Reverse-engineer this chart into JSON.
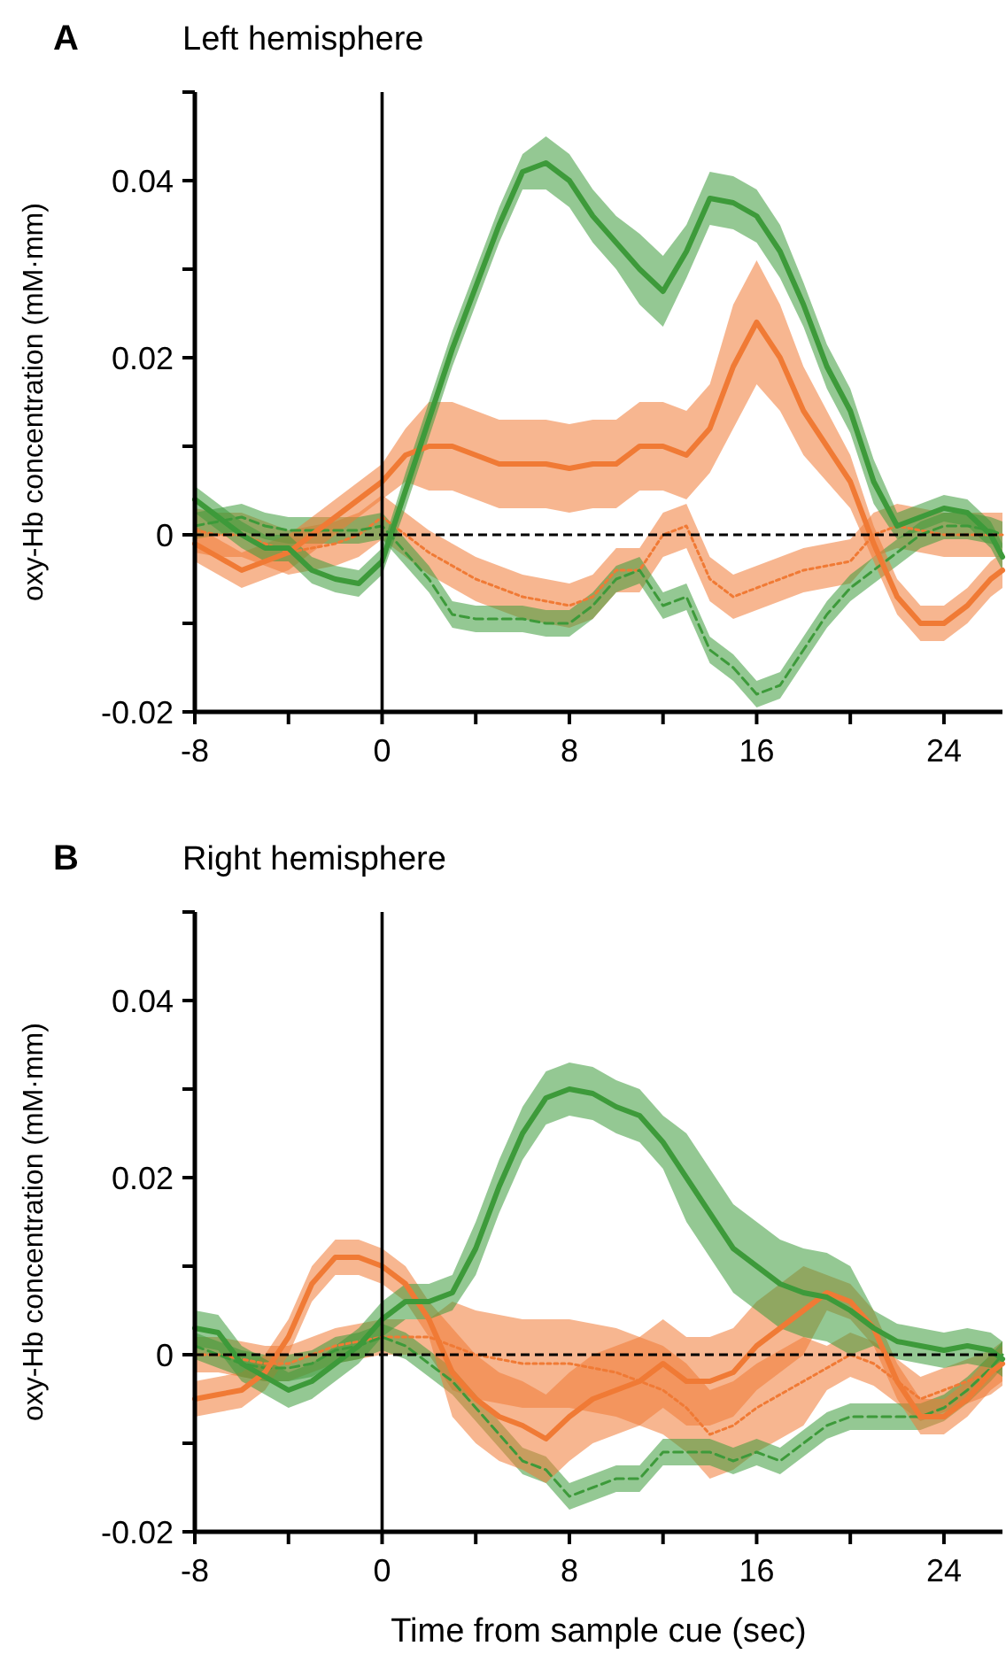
{
  "chart_data": [
    {
      "type": "line",
      "title": "Left hemisphere",
      "ylabel": "oxy-Hb concentration (mM·mm)",
      "annotations": [
        "A"
      ],
      "x": [
        -8,
        -7,
        -6,
        -5,
        -4,
        -3,
        -2,
        -1,
        0,
        1,
        2,
        3,
        4,
        5,
        6,
        7,
        8,
        9,
        10,
        11,
        12,
        13,
        14,
        15,
        16,
        17,
        18,
        19,
        20,
        21,
        22,
        23,
        24,
        25,
        26,
        26.5
      ],
      "xlim": [
        -8,
        26.5
      ],
      "xticks": [
        -8,
        {
          "value": -4,
          "label": null
        },
        0,
        {
          "value": 4,
          "label": null
        },
        8,
        {
          "value": 12,
          "label": null
        },
        16,
        {
          "value": 20,
          "label": null
        },
        24
      ],
      "ylim": [
        -0.02,
        0.05
      ],
      "yticks": [
        -0.02,
        {
          "value": -0.01,
          "label": null
        },
        0,
        {
          "value": 0.01,
          "label": null
        },
        0.02,
        {
          "value": 0.03,
          "label": null
        },
        0.04,
        {
          "value": 0.05,
          "label": null
        }
      ],
      "grid": false,
      "marker": "none",
      "ref_lines": [
        {
          "axis": "x",
          "value": 0,
          "color": "#000000",
          "line_style": "solid"
        },
        {
          "axis": "y",
          "value": 0,
          "color": "#000000",
          "line_style": "dashed"
        }
      ],
      "series": [
        {
          "color": "#f07a35",
          "line_style": "dotted",
          "values": [
            0.0005,
            0,
            0,
            -0.001,
            -0.002,
            -0.0015,
            -0.001,
            0,
            0.002,
            0,
            -0.002,
            -0.0035,
            -0.005,
            -0.006,
            -0.007,
            -0.0075,
            -0.008,
            -0.007,
            -0.004,
            -0.004,
            0,
            0.001,
            -0.005,
            -0.007,
            -0.006,
            -0.005,
            -0.004,
            -0.0035,
            -0.003,
            0,
            0.001,
            0.0005,
            0,
            0,
            0,
            0
          ],
          "lower": [
            -0.002,
            -0.0025,
            -0.0025,
            -0.0035,
            -0.0045,
            -0.004,
            -0.0035,
            -0.0025,
            -0.0005,
            -0.0025,
            -0.0045,
            -0.006,
            -0.0075,
            -0.0085,
            -0.0095,
            -0.01,
            -0.0105,
            -0.0095,
            -0.0065,
            -0.0065,
            -0.0025,
            -0.0015,
            -0.0075,
            -0.0095,
            -0.0085,
            -0.0075,
            -0.0065,
            -0.006,
            -0.0055,
            -0.0025,
            -0.0015,
            -0.002,
            -0.0025,
            -0.0025,
            -0.0025,
            -0.0025
          ],
          "upper": [
            0.003,
            0.0025,
            0.0025,
            0.0015,
            0.0005,
            0.001,
            0.0015,
            0.0025,
            0.0045,
            0.0025,
            0.0005,
            -0.001,
            -0.0025,
            -0.0035,
            -0.0045,
            -0.005,
            -0.0055,
            -0.0045,
            -0.0015,
            -0.0015,
            0.0025,
            0.0035,
            -0.0025,
            -0.0045,
            -0.0035,
            -0.0025,
            -0.0015,
            -0.001,
            -0.0005,
            0.0025,
            0.0035,
            0.003,
            0.0025,
            0.0025,
            0.0025,
            0.0025
          ]
        },
        {
          "color": "#3d9a3a",
          "line_style": "dashed",
          "values": [
            0.001,
            0.0015,
            0.002,
            0.001,
            0.0005,
            0.0005,
            0.0005,
            0.0005,
            0.001,
            -0.002,
            -0.005,
            -0.009,
            -0.0095,
            -0.0095,
            -0.0095,
            -0.01,
            -0.01,
            -0.008,
            -0.005,
            -0.004,
            -0.008,
            -0.007,
            -0.013,
            -0.015,
            -0.018,
            -0.017,
            -0.013,
            -0.009,
            -0.006,
            -0.004,
            -0.002,
            0,
            0.001,
            0.001,
            0.0005,
            0
          ],
          "lower": [
            -0.0005,
            0,
            0.0005,
            -0.0005,
            -0.001,
            -0.001,
            -0.001,
            -0.001,
            -0.0005,
            -0.0035,
            -0.0065,
            -0.0105,
            -0.011,
            -0.011,
            -0.011,
            -0.0115,
            -0.0115,
            -0.0095,
            -0.0065,
            -0.0055,
            -0.0095,
            -0.0085,
            -0.0145,
            -0.0165,
            -0.0195,
            -0.0185,
            -0.0145,
            -0.0105,
            -0.0075,
            -0.0055,
            -0.0035,
            -0.0015,
            -0.0005,
            -0.0005,
            -0.001,
            -0.0015
          ],
          "upper": [
            0.0025,
            0.003,
            0.0035,
            0.0025,
            0.002,
            0.002,
            0.002,
            0.002,
            0.0025,
            -0.0005,
            -0.0035,
            -0.0075,
            -0.008,
            -0.008,
            -0.008,
            -0.0085,
            -0.0085,
            -0.0065,
            -0.0035,
            -0.0025,
            -0.0065,
            -0.0055,
            -0.0115,
            -0.0135,
            -0.0165,
            -0.0155,
            -0.0115,
            -0.0075,
            -0.0045,
            -0.0025,
            -0.0005,
            0.0015,
            0.0025,
            0.0025,
            0.002,
            0.0015
          ]
        },
        {
          "color": "#f07a35",
          "line_style": "solid",
          "values": [
            -0.001,
            -0.0025,
            -0.004,
            -0.003,
            -0.002,
            0,
            0.002,
            0.004,
            0.006,
            0.009,
            0.01,
            0.01,
            0.009,
            0.008,
            0.008,
            0.008,
            0.0075,
            0.008,
            0.008,
            0.01,
            0.01,
            0.009,
            0.012,
            0.019,
            0.024,
            0.02,
            0.014,
            0.01,
            0.006,
            -0.001,
            -0.007,
            -0.01,
            -0.01,
            -0.008,
            -0.005,
            -0.004
          ],
          "lower": [
            -0.003,
            -0.0045,
            -0.006,
            -0.005,
            -0.004,
            -0.002,
            0,
            0.002,
            0.004,
            0.006,
            0.005,
            0.005,
            0.004,
            0.003,
            0.003,
            0.003,
            0.0025,
            0.003,
            0.003,
            0.005,
            0.005,
            0.004,
            0.007,
            0.012,
            0.017,
            0.014,
            0.009,
            0.006,
            0.003,
            -0.003,
            -0.009,
            -0.012,
            -0.012,
            -0.01,
            -0.007,
            -0.006
          ],
          "upper": [
            0.001,
            -0.0005,
            -0.002,
            -0.001,
            0,
            0.002,
            0.004,
            0.006,
            0.008,
            0.012,
            0.015,
            0.015,
            0.014,
            0.013,
            0.013,
            0.013,
            0.0125,
            0.013,
            0.013,
            0.015,
            0.015,
            0.014,
            0.017,
            0.026,
            0.031,
            0.026,
            0.019,
            0.014,
            0.009,
            0.001,
            -0.005,
            -0.008,
            -0.008,
            -0.006,
            -0.003,
            -0.002
          ]
        },
        {
          "color": "#3d9a3a",
          "line_style": "solid",
          "values": [
            0.004,
            0.002,
            0,
            -0.0015,
            -0.0015,
            -0.004,
            -0.005,
            -0.0055,
            -0.003,
            0.005,
            0.013,
            0.021,
            0.028,
            0.035,
            0.041,
            0.042,
            0.04,
            0.036,
            0.033,
            0.03,
            0.0275,
            0.032,
            0.038,
            0.0375,
            0.036,
            0.032,
            0.026,
            0.019,
            0.014,
            0.006,
            0.001,
            0.002,
            0.003,
            0.0025,
            0,
            -0.0025
          ],
          "lower": [
            0.0025,
            0.0005,
            -0.0015,
            -0.003,
            -0.003,
            -0.0055,
            -0.0065,
            -0.007,
            -0.0045,
            0.003,
            0.011,
            0.019,
            0.026,
            0.033,
            0.039,
            0.039,
            0.037,
            0.033,
            0.03,
            0.026,
            0.0235,
            0.029,
            0.035,
            0.0345,
            0.033,
            0.029,
            0.0235,
            0.0165,
            0.0115,
            0.0035,
            -0.0005,
            0.0005,
            0.0015,
            0.001,
            -0.0015,
            -0.004
          ],
          "upper": [
            0.0055,
            0.0035,
            0.0015,
            0,
            0,
            -0.0025,
            -0.0035,
            -0.004,
            -0.0015,
            0.007,
            0.015,
            0.023,
            0.03,
            0.037,
            0.043,
            0.045,
            0.043,
            0.039,
            0.036,
            0.034,
            0.0315,
            0.035,
            0.041,
            0.0405,
            0.039,
            0.035,
            0.0285,
            0.0215,
            0.0165,
            0.0085,
            0.0025,
            0.0035,
            0.0045,
            0.004,
            0.0015,
            -0.001
          ]
        }
      ]
    },
    {
      "type": "line",
      "title": "Right hemisphere",
      "ylabel": "oxy-Hb concentration (mM·mm)",
      "xlabel": "Time from sample cue (sec)",
      "annotations": [
        "B"
      ],
      "x": [
        -8,
        -7,
        -6,
        -5,
        -4,
        -3,
        -2,
        -1,
        0,
        1,
        2,
        3,
        4,
        5,
        6,
        7,
        8,
        9,
        10,
        11,
        12,
        13,
        14,
        15,
        16,
        17,
        18,
        19,
        20,
        21,
        22,
        23,
        24,
        25,
        26,
        26.5
      ],
      "xlim": [
        -8,
        26.5
      ],
      "xticks": [
        -8,
        {
          "value": -4,
          "label": null
        },
        0,
        {
          "value": 4,
          "label": null
        },
        8,
        {
          "value": 12,
          "label": null
        },
        16,
        {
          "value": 20,
          "label": null
        },
        24
      ],
      "ylim": [
        -0.02,
        0.05
      ],
      "yticks": [
        -0.02,
        {
          "value": -0.01,
          "label": null
        },
        0,
        {
          "value": 0.01,
          "label": null
        },
        0.02,
        {
          "value": 0.03,
          "label": null
        },
        0.04,
        {
          "value": 0.05,
          "label": null
        }
      ],
      "grid": false,
      "marker": "none",
      "ref_lines": [
        {
          "axis": "x",
          "value": 0,
          "color": "#000000",
          "line_style": "solid"
        },
        {
          "axis": "y",
          "value": 0,
          "color": "#000000",
          "line_style": "dashed"
        }
      ],
      "series": [
        {
          "color": "#f07a35",
          "line_style": "dotted",
          "values": [
            0,
            0,
            -0.0005,
            -0.001,
            -0.001,
            0,
            0.001,
            0.0015,
            0.002,
            0.002,
            0.002,
            0.001,
            0,
            -0.0005,
            -0.001,
            -0.001,
            -0.001,
            -0.0015,
            -0.002,
            -0.003,
            -0.004,
            -0.006,
            -0.009,
            -0.008,
            -0.006,
            -0.0045,
            -0.003,
            -0.0015,
            0,
            -0.001,
            -0.003,
            -0.005,
            -0.004,
            -0.003,
            -0.002,
            -0.001
          ],
          "lower": [
            -0.002,
            -0.002,
            -0.0025,
            -0.003,
            -0.003,
            -0.002,
            -0.001,
            -0.0005,
            0,
            0,
            0,
            -0.004,
            -0.005,
            -0.0055,
            -0.006,
            -0.006,
            -0.006,
            -0.0065,
            -0.007,
            -0.008,
            -0.009,
            -0.011,
            -0.014,
            -0.013,
            -0.011,
            -0.0095,
            -0.008,
            -0.004,
            -0.0025,
            -0.0035,
            -0.0055,
            -0.0075,
            -0.0065,
            -0.0055,
            -0.0045,
            -0.0035
          ],
          "upper": [
            0.002,
            0.002,
            0.0015,
            0.001,
            0.001,
            0.002,
            0.003,
            0.0035,
            0.004,
            0.004,
            0.004,
            0.006,
            0.005,
            0.0045,
            0.004,
            0.004,
            0.004,
            0.0035,
            0.003,
            0.002,
            0.001,
            -0.001,
            -0.004,
            -0.003,
            -0.001,
            0.0005,
            0.002,
            0.001,
            0.0025,
            0.0015,
            -0.0005,
            -0.0025,
            -0.0015,
            -0.0005,
            0.0005,
            0.0015
          ]
        },
        {
          "color": "#3d9a3a",
          "line_style": "dashed",
          "values": [
            0.001,
            0,
            -0.001,
            -0.0015,
            -0.0015,
            -0.001,
            0.0005,
            0.001,
            0.002,
            0.001,
            -0.001,
            -0.003,
            -0.006,
            -0.009,
            -0.012,
            -0.013,
            -0.016,
            -0.015,
            -0.014,
            -0.014,
            -0.011,
            -0.011,
            -0.011,
            -0.012,
            -0.011,
            -0.012,
            -0.01,
            -0.008,
            -0.007,
            -0.007,
            -0.007,
            -0.007,
            -0.006,
            -0.004,
            -0.0015,
            0
          ],
          "lower": [
            -0.0005,
            -0.0015,
            -0.0025,
            -0.003,
            -0.003,
            -0.0025,
            -0.001,
            -0.0005,
            0.0005,
            -0.0005,
            -0.0025,
            -0.0045,
            -0.0075,
            -0.0105,
            -0.0135,
            -0.0145,
            -0.0175,
            -0.0165,
            -0.0155,
            -0.0155,
            -0.0125,
            -0.0125,
            -0.0125,
            -0.0135,
            -0.0125,
            -0.0135,
            -0.0115,
            -0.0095,
            -0.0085,
            -0.0085,
            -0.0085,
            -0.0085,
            -0.0075,
            -0.0055,
            -0.003,
            -0.0015
          ],
          "upper": [
            0.0025,
            0.0015,
            0.0005,
            0,
            0,
            0.0005,
            0.002,
            0.0025,
            0.0035,
            0.0025,
            0.0005,
            -0.0015,
            -0.0045,
            -0.0075,
            -0.0105,
            -0.0115,
            -0.0145,
            -0.0135,
            -0.0125,
            -0.0125,
            -0.0095,
            -0.0095,
            -0.0095,
            -0.0105,
            -0.0095,
            -0.0105,
            -0.0085,
            -0.0065,
            -0.0055,
            -0.0055,
            -0.0055,
            -0.0055,
            -0.0045,
            -0.0025,
            0,
            0.0015
          ]
        },
        {
          "color": "#f07a35",
          "line_style": "solid",
          "values": [
            -0.005,
            -0.0045,
            -0.004,
            -0.002,
            0.002,
            0.008,
            0.011,
            0.011,
            0.01,
            0.008,
            0.004,
            -0.002,
            -0.005,
            -0.007,
            -0.008,
            -0.0095,
            -0.007,
            -0.005,
            -0.004,
            -0.003,
            -0.001,
            -0.003,
            -0.003,
            -0.002,
            0.001,
            0.003,
            0.005,
            0.007,
            0.006,
            0.003,
            -0.003,
            -0.007,
            -0.007,
            -0.005,
            -0.002,
            -0.001
          ],
          "lower": [
            -0.007,
            -0.0065,
            -0.006,
            -0.004,
            0,
            0.006,
            0.009,
            0.009,
            0.008,
            0.006,
            0.002,
            -0.007,
            -0.01,
            -0.012,
            -0.013,
            -0.0145,
            -0.012,
            -0.01,
            -0.009,
            -0.008,
            -0.006,
            -0.008,
            -0.008,
            -0.007,
            -0.004,
            -0.002,
            0,
            0.005,
            0.004,
            0.001,
            -0.005,
            -0.009,
            -0.009,
            -0.007,
            -0.004,
            -0.003
          ],
          "upper": [
            -0.003,
            -0.0025,
            -0.002,
            0,
            0.004,
            0.01,
            0.013,
            0.013,
            0.012,
            0.01,
            0.006,
            0.003,
            0,
            -0.002,
            -0.003,
            -0.0045,
            -0.002,
            0,
            0.001,
            0.002,
            0.004,
            0.002,
            0.002,
            0.003,
            0.006,
            0.008,
            0.01,
            0.009,
            0.008,
            0.005,
            -0.001,
            -0.005,
            -0.005,
            -0.003,
            0,
            0.001
          ]
        },
        {
          "color": "#3d9a3a",
          "line_style": "solid",
          "values": [
            0.003,
            0.0025,
            -0.001,
            -0.0025,
            -0.004,
            -0.003,
            -0.001,
            0.001,
            0.004,
            0.006,
            0.006,
            0.007,
            0.012,
            0.019,
            0.025,
            0.029,
            0.03,
            0.0295,
            0.028,
            0.027,
            0.024,
            0.02,
            0.016,
            0.012,
            0.01,
            0.008,
            0.007,
            0.0065,
            0.005,
            0.003,
            0.0015,
            0.001,
            0.0005,
            0.001,
            0.0005,
            -0.0005
          ],
          "lower": [
            0.001,
            0.0005,
            -0.003,
            -0.0045,
            -0.006,
            -0.005,
            -0.003,
            -0.001,
            0.002,
            0.004,
            0.004,
            0.005,
            0.009,
            0.016,
            0.022,
            0.026,
            0.027,
            0.0265,
            0.025,
            0.024,
            0.021,
            0.015,
            0.011,
            0.007,
            0.005,
            0.003,
            0.002,
            0.0015,
            0,
            0.001,
            -0.0005,
            -0.001,
            -0.0015,
            -0.001,
            -0.0015,
            -0.0025
          ],
          "upper": [
            0.005,
            0.0045,
            0.001,
            -0.0005,
            -0.002,
            -0.001,
            0.001,
            0.003,
            0.006,
            0.008,
            0.008,
            0.009,
            0.015,
            0.022,
            0.028,
            0.032,
            0.033,
            0.0325,
            0.031,
            0.03,
            0.027,
            0.025,
            0.021,
            0.017,
            0.015,
            0.013,
            0.012,
            0.0115,
            0.01,
            0.005,
            0.0035,
            0.003,
            0.0025,
            0.003,
            0.0025,
            0.0015
          ]
        }
      ]
    }
  ]
}
